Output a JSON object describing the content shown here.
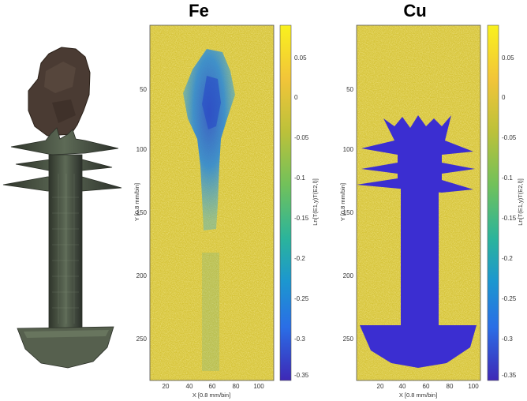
{
  "panels": {
    "photo": {
      "caption": ""
    },
    "fe": {
      "title": "Fe",
      "xlabel": "X [0.8 mm/bin]",
      "ylabel": "Y [0.8 mm/bin]",
      "xticks": [
        "20",
        "40",
        "60",
        "80",
        "100"
      ],
      "yticks": [
        "50",
        "100",
        "150",
        "200",
        "250"
      ],
      "colorbar_label": "Ln[T(E1,y)T(E2,l)]",
      "colorbar_ticks": [
        "0.05",
        "0",
        "-0.05",
        "-0.1",
        "-0.15",
        "-0.2",
        "-0.25",
        "-0.3",
        "-0.35"
      ]
    },
    "cu": {
      "title": "Cu",
      "xlabel": "X [0.8 mm/bin]",
      "ylabel": "Y [0.8 mm/bin]",
      "xticks": [
        "20",
        "40",
        "60",
        "80",
        "100"
      ],
      "yticks": [
        "50",
        "100",
        "150",
        "200",
        "250"
      ],
      "colorbar_label": "Ln[T(E1,y)T(E2,l)]",
      "colorbar_ticks": [
        "0.05",
        "0",
        "-0.05",
        "-0.1",
        "-0.15",
        "-0.2",
        "-0.25",
        "-0.3",
        "-0.35"
      ]
    }
  },
  "colors": {
    "noise_yellow": "#e0c020",
    "noise_green": "#4fb874",
    "fe_blue": "#2f7fd6",
    "cu_indigo": "#3b2ed1",
    "bronze": "#4e5647",
    "stone": "#4a3b33"
  }
}
